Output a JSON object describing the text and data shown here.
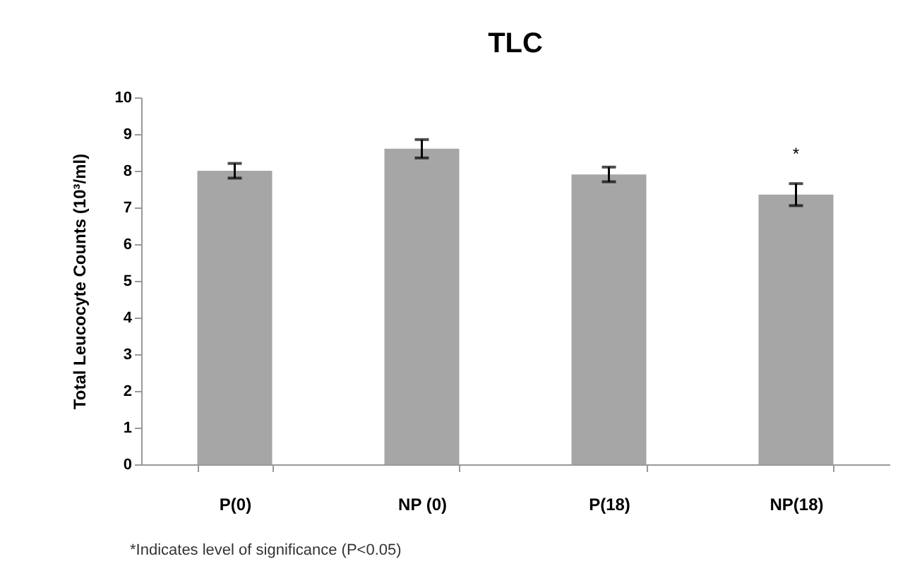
{
  "chart_data": {
    "type": "bar",
    "title": "TLC",
    "ylabel": "Total Leucocyte Counts (10³/ml)",
    "categories": [
      "P(0)",
      "NP (0)",
      "P(18)",
      "NP(18)"
    ],
    "values": [
      8.0,
      8.6,
      7.9,
      7.35
    ],
    "errors": [
      0.2,
      0.25,
      0.2,
      0.3
    ],
    "color": "#a6a6a6",
    "ylim": [
      0,
      10
    ],
    "yticks": [
      0,
      1,
      2,
      3,
      4,
      5,
      6,
      7,
      8,
      9,
      10
    ],
    "grid": false,
    "annotations": [
      "*",
      "*Indicates level of significance (P<0.05)"
    ]
  }
}
